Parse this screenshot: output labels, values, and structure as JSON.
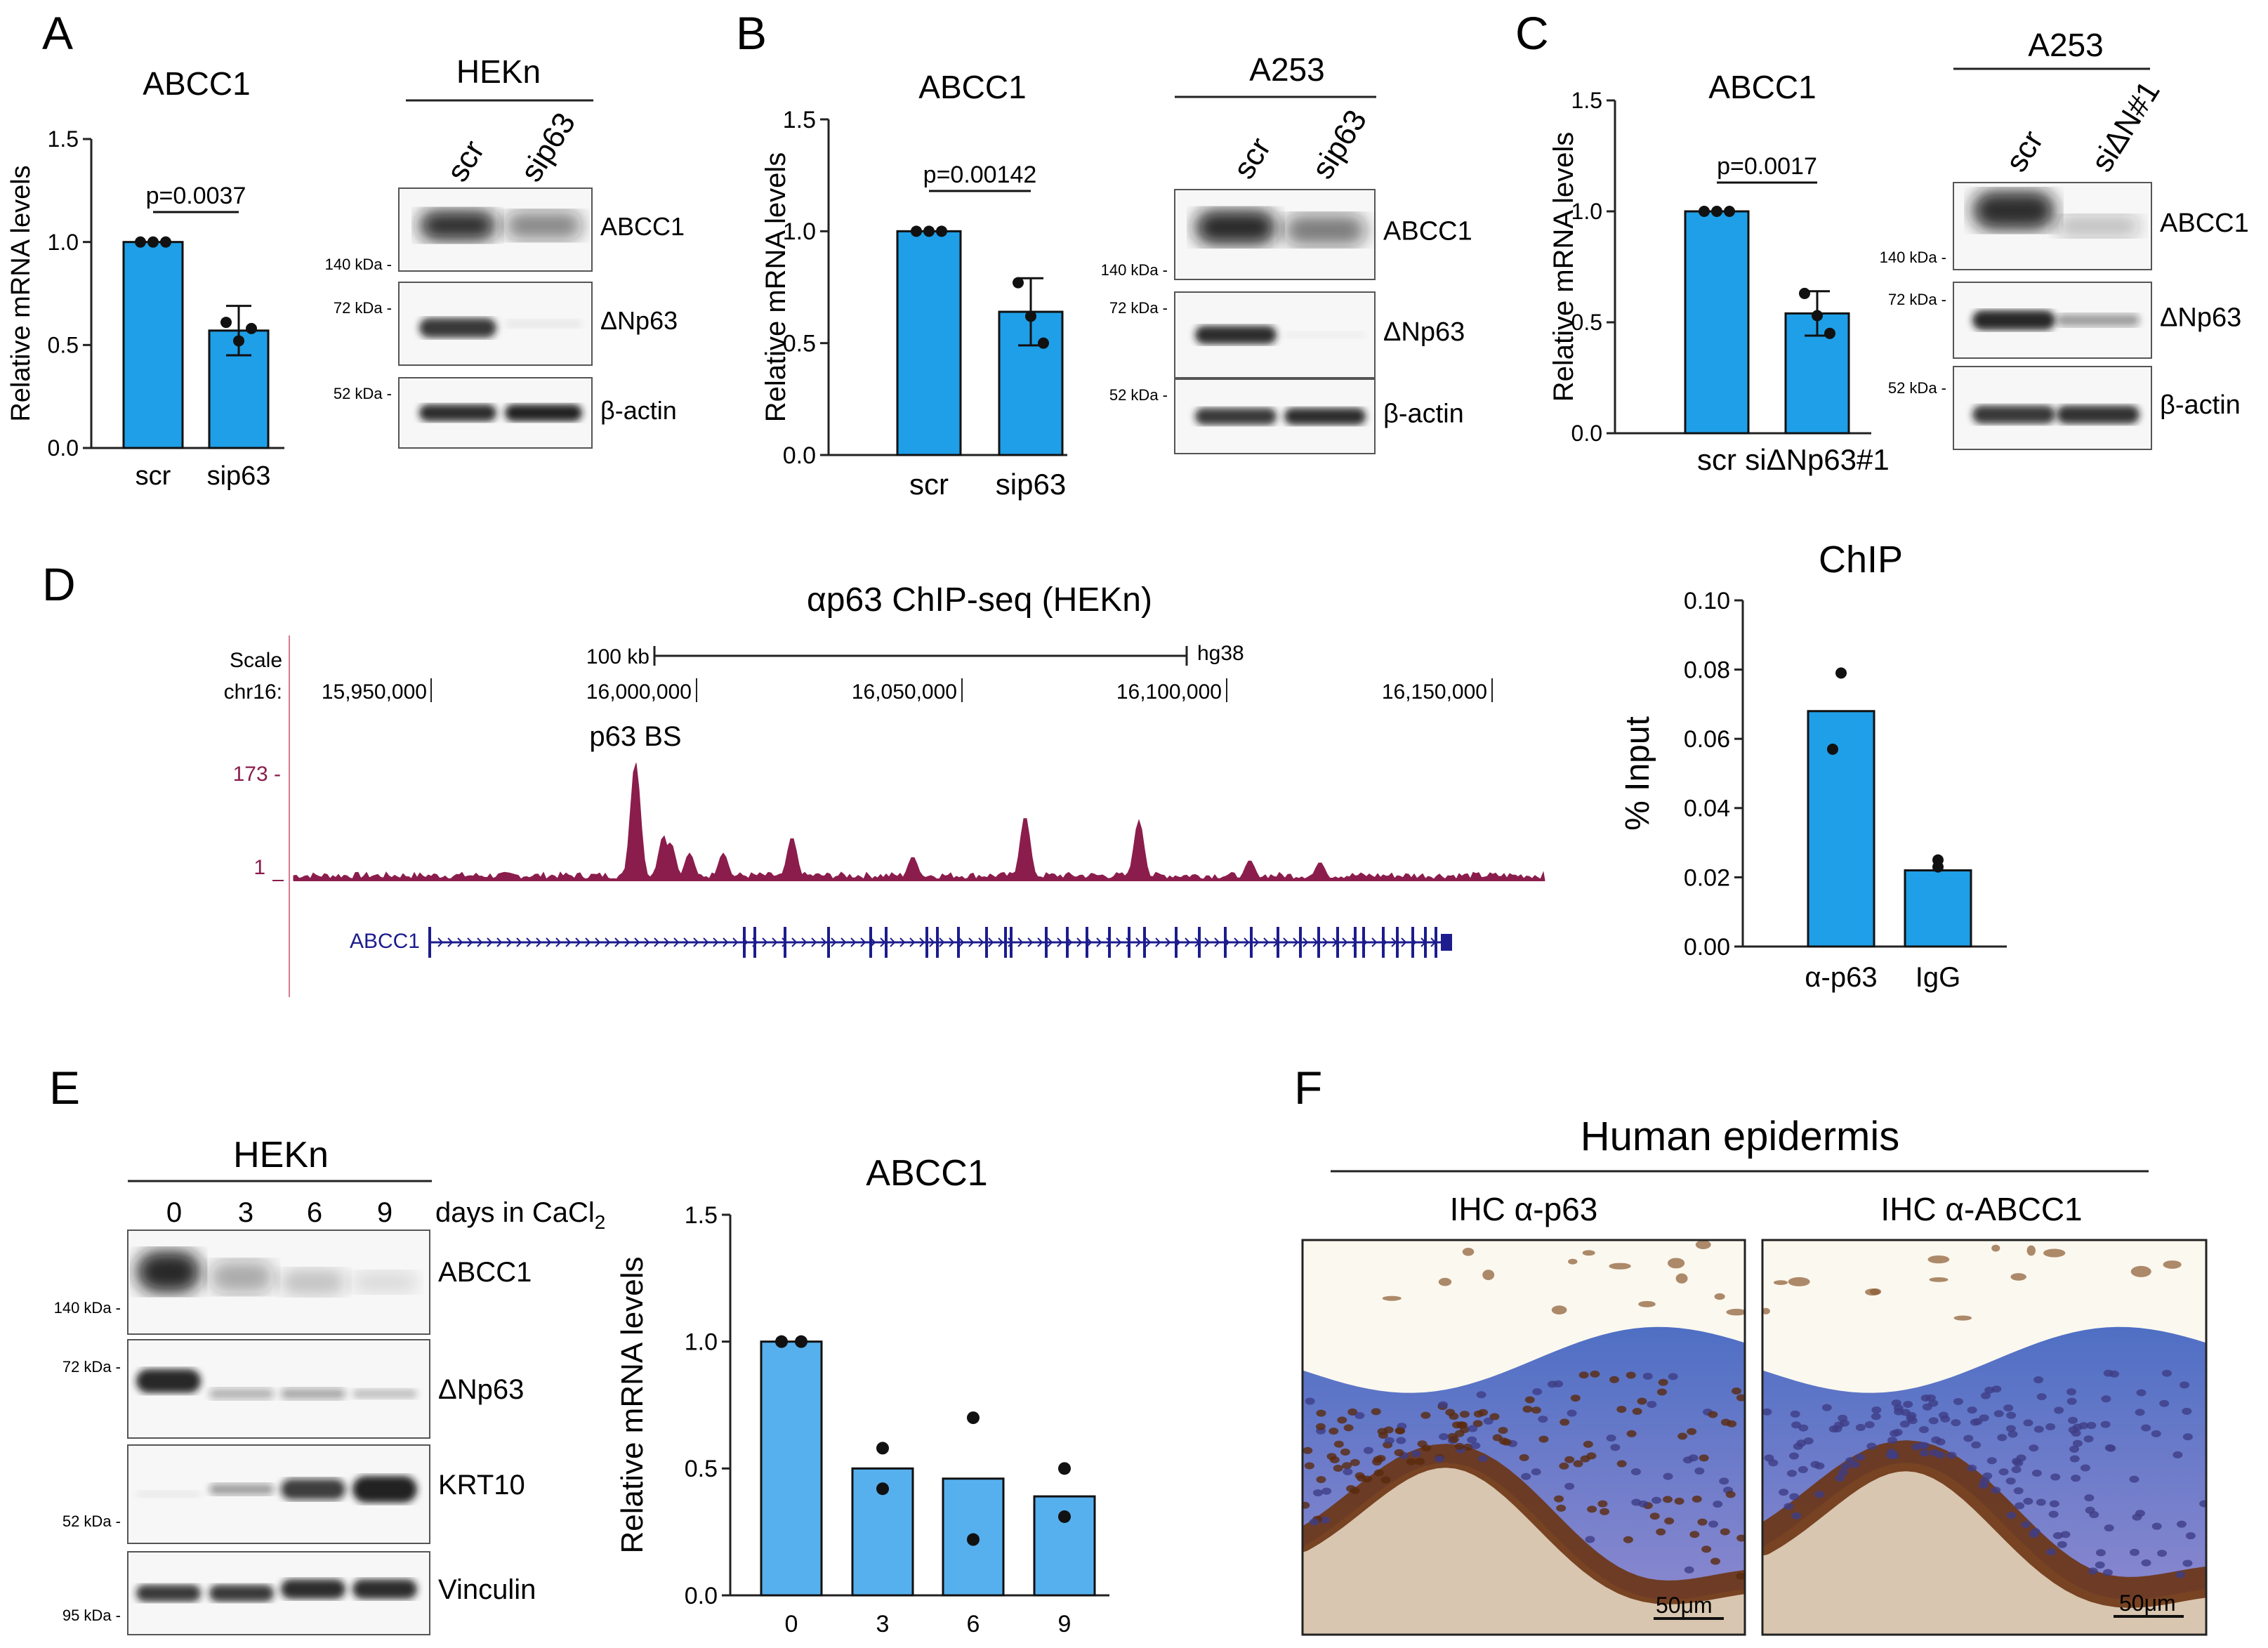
{
  "colors": {
    "bar": "#1f9fe8",
    "bar_light": "#56b0ee",
    "track": "#8b1d4c",
    "gene": "#1c1c8e",
    "axis": "#222222"
  },
  "panels": {
    "A": {
      "letter": "A",
      "chart_title": "ABCC1",
      "ylabel": "Relative mRNA levels",
      "yticks": [
        "0.0",
        "0.5",
        "1.0",
        "1.5"
      ],
      "xcats": [
        "scr",
        "sip63"
      ],
      "pval": "p=0.0037",
      "blot_title": "HEKn",
      "lanes": [
        "scr",
        "sip63"
      ],
      "bands": [
        "ABCC1",
        "ΔNp63",
        "β-actin"
      ],
      "mw": [
        "140 kDa",
        "72 kDa",
        "52 kDa"
      ]
    },
    "B": {
      "letter": "B",
      "chart_title": "ABCC1",
      "ylabel": "Relative mRNA levels",
      "yticks": [
        "0.0",
        "0.5",
        "1.0",
        "1.5"
      ],
      "xcats": [
        "scr",
        "sip63"
      ],
      "pval": "p=0.00142",
      "blot_title": "A253",
      "lanes": [
        "scr",
        "sip63"
      ],
      "bands": [
        "ABCC1",
        "ΔNp63",
        "β-actin"
      ],
      "mw": [
        "140 kDa",
        "72 kDa",
        "52 kDa"
      ]
    },
    "C": {
      "letter": "C",
      "chart_title": "ABCC1",
      "ylabel": "Relative mRNA levels",
      "yticks": [
        "0.0",
        "0.5",
        "1.0",
        "1.5"
      ],
      "xcats": [
        "scr",
        "siΔNp63#1"
      ],
      "pval": "p=0.0017",
      "blot_title": "A253",
      "lanes": [
        "scr",
        "siΔN#1"
      ],
      "bands": [
        "ABCC1",
        "ΔNp63",
        "β-actin"
      ],
      "mw": [
        "140 kDa",
        "72 kDa",
        "52 kDa"
      ]
    },
    "D": {
      "letter": "D",
      "track_title": "αp63 ChIP-seq (HEKn)",
      "scale_label": "Scale",
      "chr_label": "chr16:",
      "scale_bar": "100 kb",
      "assembly": "hg38",
      "coords": [
        "15,950,000",
        "16,000,000",
        "16,050,000",
        "16,100,000",
        "16,150,000"
      ],
      "peak_label": "p63 BS",
      "ymax_label": "173 -",
      "ymin_label": "1",
      "gene": "ABCC1",
      "chip_title": "ChIP",
      "chip_ylabel": "% Input",
      "chip_yticks": [
        "0.00",
        "0.02",
        "0.04",
        "0.06",
        "0.08",
        "0.10"
      ],
      "chip_cats": [
        "α-p63",
        "IgG"
      ]
    },
    "E": {
      "letter": "E",
      "blot_title": "HEKn",
      "lanes": [
        "0",
        "3",
        "6",
        "9"
      ],
      "lane_suffix": "days in CaCl",
      "lane_sub": "2",
      "bands": [
        "ABCC1",
        "ΔNp63",
        "KRT10",
        "Vinculin"
      ],
      "mw": [
        "140 kDa",
        "72 kDa",
        "52 kDa",
        "95 kDa"
      ],
      "chart_title": "ABCC1",
      "ylabel": "Relative mRNA levels",
      "yticks": [
        "0.0",
        "0.5",
        "1.0",
        "1.5"
      ],
      "xcats": [
        "0",
        "3",
        "6",
        "9"
      ]
    },
    "F": {
      "letter": "F",
      "title": "Human epidermis",
      "left_label": "IHC α-p63",
      "right_label": "IHC α-ABCC1",
      "scale": "50μm"
    }
  },
  "chart_data": [
    {
      "type": "bar",
      "panel": "A",
      "title": "ABCC1",
      "ylabel": "Relative mRNA levels",
      "ylim": [
        0,
        1.5
      ],
      "categories": [
        "scr",
        "sip63"
      ],
      "values": [
        1.0,
        0.57
      ],
      "errors": [
        0,
        0.12
      ],
      "points": [
        [
          1.0,
          1.0,
          1.0
        ],
        [
          0.61,
          0.52,
          0.58
        ]
      ]
    },
    {
      "type": "bar",
      "panel": "B",
      "title": "ABCC1",
      "ylabel": "Relative mRNA levels",
      "ylim": [
        0,
        1.5
      ],
      "categories": [
        "scr",
        "sip63"
      ],
      "values": [
        1.0,
        0.64
      ],
      "errors": [
        0,
        0.15
      ],
      "points": [
        [
          1.0,
          1.0,
          1.0
        ],
        [
          0.77,
          0.62,
          0.5
        ]
      ]
    },
    {
      "type": "bar",
      "panel": "C",
      "title": "ABCC1",
      "ylabel": "Relative mRNA levels",
      "ylim": [
        0,
        1.5
      ],
      "categories": [
        "scr",
        "siΔNp63#1"
      ],
      "values": [
        1.0,
        0.54
      ],
      "errors": [
        0,
        0.1
      ],
      "points": [
        [
          1.0,
          1.0,
          1.0
        ],
        [
          0.63,
          0.53,
          0.45
        ]
      ]
    },
    {
      "type": "bar",
      "panel": "D",
      "title": "ChIP",
      "ylabel": "% Input",
      "ylim": [
        0,
        0.1
      ],
      "categories": [
        "α-p63",
        "IgG"
      ],
      "values": [
        0.068,
        0.022
      ],
      "points": [
        [
          0.079,
          0.057
        ],
        [
          0.025,
          0.023
        ]
      ]
    },
    {
      "type": "bar",
      "panel": "E",
      "title": "ABCC1",
      "ylabel": "Relative mRNA levels",
      "ylim": [
        0,
        1.5
      ],
      "categories": [
        "0",
        "3",
        "6",
        "9"
      ],
      "values": [
        1.0,
        0.5,
        0.46,
        0.39
      ],
      "points": [
        [
          1.0,
          1.0
        ],
        [
          0.58,
          0.42
        ],
        [
          0.7,
          0.22
        ],
        [
          0.5,
          0.31
        ]
      ]
    }
  ]
}
